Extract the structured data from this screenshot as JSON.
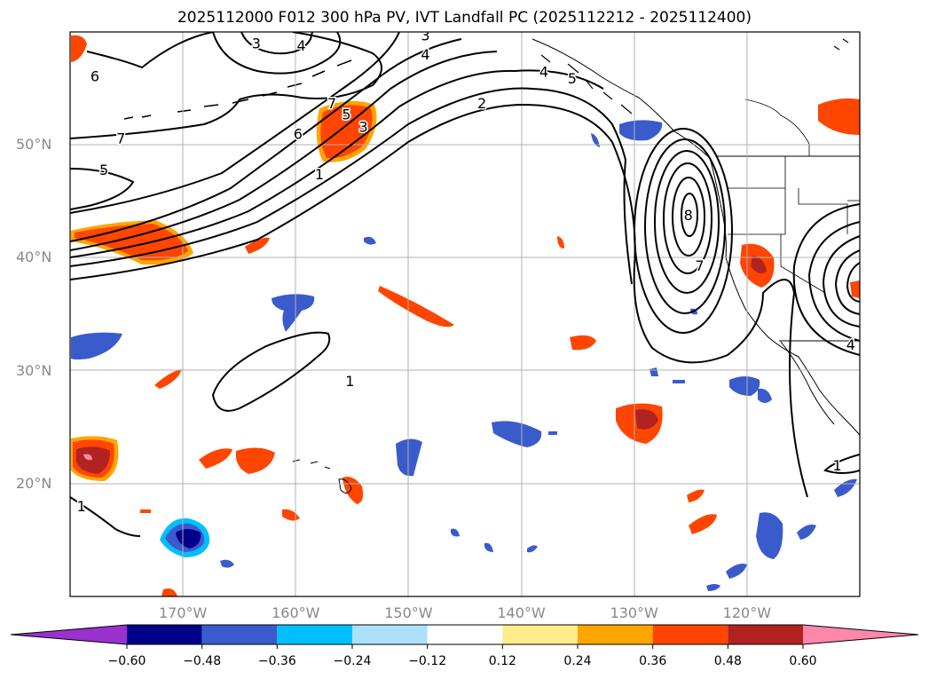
{
  "title": "2025112000 F012 300 hPa PV, IVT Landfall PC (2025112212 - 2025112400)",
  "colors": {
    "grid": "#b0b0b0",
    "coast": "#000000",
    "contour": "#000000",
    "frame": "#000000"
  },
  "map": {
    "lon_range": [
      -180,
      -110
    ],
    "lat_range": [
      10,
      60
    ],
    "lon_ticks": [
      {
        "lon": -170,
        "label": "170°W"
      },
      {
        "lon": -160,
        "label": "160°W"
      },
      {
        "lon": -150,
        "label": "150°W"
      },
      {
        "lon": -140,
        "label": "140°W"
      },
      {
        "lon": -130,
        "label": "130°W"
      },
      {
        "lon": -120,
        "label": "120°W"
      }
    ],
    "lat_ticks": [
      {
        "lat": 50,
        "label": "50°N"
      },
      {
        "lat": 40,
        "label": "40°N"
      },
      {
        "lat": 30,
        "label": "30°N"
      },
      {
        "lat": 20,
        "label": "20°N"
      }
    ],
    "contour_labels": [
      {
        "text": "3",
        "lon": -163.5,
        "lat": 58.9
      },
      {
        "text": "4",
        "lon": -159.5,
        "lat": 58.7
      },
      {
        "text": "3",
        "lon": -148.5,
        "lat": 59.6
      },
      {
        "text": "4",
        "lon": -148.5,
        "lat": 57.9
      },
      {
        "text": "4",
        "lon": -138,
        "lat": 56.4
      },
      {
        "text": "5",
        "lon": -135.5,
        "lat": 55.8
      },
      {
        "text": "6",
        "lon": -177.8,
        "lat": 56.0
      },
      {
        "text": "7",
        "lon": -156.8,
        "lat": 53.6
      },
      {
        "text": "5",
        "lon": -155.5,
        "lat": 52.6
      },
      {
        "text": "3",
        "lon": -154,
        "lat": 51.5
      },
      {
        "text": "2",
        "lon": -143.5,
        "lat": 53.6
      },
      {
        "text": "6",
        "lon": -159.8,
        "lat": 50.9
      },
      {
        "text": "7",
        "lon": -175.5,
        "lat": 50.5
      },
      {
        "text": "5",
        "lon": -177.0,
        "lat": 47.7
      },
      {
        "text": "1",
        "lon": -157.9,
        "lat": 47.3
      },
      {
        "text": "8",
        "lon": -125.2,
        "lat": 43.7
      },
      {
        "text": "7",
        "lon": -124.2,
        "lat": 39.2
      },
      {
        "text": "1",
        "lon": -155.2,
        "lat": 29.0
      },
      {
        "text": "1",
        "lon": -112.0,
        "lat": 21.5
      },
      {
        "text": "1",
        "lon": -179.0,
        "lat": 17.9
      },
      {
        "text": "4",
        "lon": -110.8,
        "lat": 32.2
      }
    ]
  },
  "colorbar": {
    "boundaries": [
      -0.72,
      -0.6,
      -0.48,
      -0.36,
      -0.24,
      -0.12,
      0.12,
      0.24,
      0.36,
      0.48,
      0.6,
      0.72
    ],
    "colors": [
      "#9932CC",
      "#00008B",
      "#3A5BCC",
      "#00BFFF",
      "#ADE0FA",
      "#FFFFFF",
      "#FFEC8B",
      "#FFA500",
      "#FF4500",
      "#B22222",
      "#FF88AA"
    ],
    "tick_labels": [
      "−0.60",
      "−0.48",
      "−0.36",
      "−0.24",
      "−0.12",
      "0.12",
      "0.24",
      "0.36",
      "0.48",
      "0.60"
    ],
    "tick_values": [
      -0.6,
      -0.48,
      -0.36,
      -0.24,
      -0.12,
      0.12,
      0.24,
      0.36,
      0.48,
      0.6
    ]
  }
}
